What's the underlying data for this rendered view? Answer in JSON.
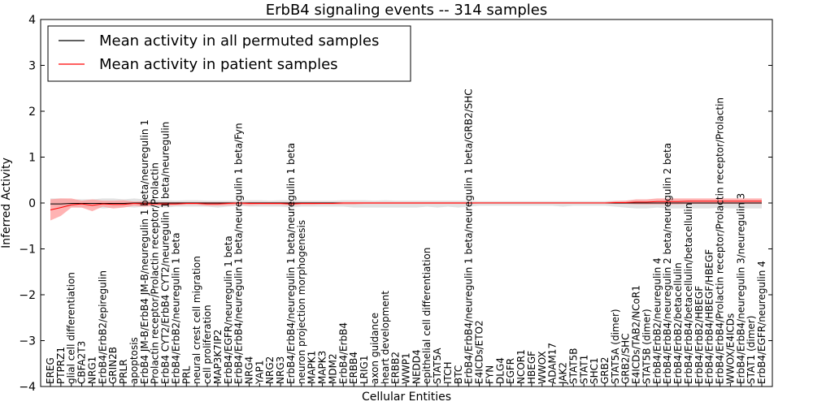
{
  "chart_data": {
    "type": "line",
    "title": "ErbB4 signaling events -- 314 samples",
    "xlabel": "Cellular Entities",
    "ylabel": "Inferred Activity",
    "ylim": [
      -4,
      4
    ],
    "yticks": [
      4,
      3,
      2,
      1,
      0,
      -1,
      -2,
      -3,
      -4
    ],
    "grid": false,
    "legend_position": "top-left",
    "categories": [
      "EREG",
      "PTPRZ1",
      "glial cell differentiation",
      "CBFA2T3",
      "NRG1",
      "ErbB4/ErbB2/epiregulin",
      "GRIN2B",
      "PRLR",
      "apoptosis",
      "ErbB4 JM-B/ErbB4 JM-B/neuregulin 1 beta/neuregulin 1",
      "Prolactin receptor/Prolactin receptor/Prolactin",
      "ErbB4 CYT2/ErbB4 CYT2/neuregulin 1 beta/neuregulin",
      "ErbB4/ErbB2/neuregulin 1 beta",
      "PRL",
      "neural crest cell migration",
      "cell proliferation",
      "MAP3K7IP2",
      "ErbB4/EGFR/neuregulin 1 beta",
      "ErbB4/ErbB4/neuregulin 1 beta/neuregulin 1 beta/Fyn",
      "NRG4",
      "YAP1",
      "NRG2",
      "NRG3",
      "ErbB4/ErbB4/neuregulin 1 beta/neuregulin 1 beta",
      "neuron projection morphogenesis",
      "MAPK1",
      "MAPK3",
      "MDM2",
      "ErbB4/ErbB4",
      "ERBB4",
      "LRIG1",
      "axon guidance",
      "heart development",
      "ERBB2",
      "WWP1",
      "NEDD4",
      "epithelial cell differentiation",
      "STAT5A",
      "ITCH",
      "BTC",
      "ErbB4/ErbB4/neuregulin 1 beta/neuregulin 1 beta/GRB2/SHC",
      "E4ICDs/ETO2",
      "FYN",
      "DLG4",
      "EGFR",
      "NCOR1",
      "HBEGF",
      "WWOX",
      "ADAM17",
      "JAK2",
      "STAT5B",
      "STAT1",
      "SHC1",
      "GRB2",
      "STAT5A (dimer)",
      "GRB2/SHC",
      "E4ICDs/TAB2/NCoR1",
      "STAT5B (dimer)",
      "ErbB4/ErbB2/neuregulin 4",
      "ErbB4/ErbB4/neuregulin 2 beta/neuregulin 2 beta",
      "ErbB4/ErbB2/betacellulin",
      "ErbB4/ErbB4/betacellulin/betacellulin",
      "ErbB4/ErbB2/HBEGF",
      "ErbB4/ErbB4/HBEGF/HBEGF",
      "ErbB4/ErbB4/Prolactin receptor/Prolactin receptor/Prolactin",
      "WWOX/E4ICDs",
      "ErbB4/ErbB4/neuregulin 3/neuregulin 3",
      "STAT1 (dimer)",
      "ErbB4/EGFR/neuregulin 4"
    ],
    "series": [
      {
        "name": "Mean activity in all permuted samples",
        "color": "#000000",
        "values": [
          -0.02,
          -0.02,
          -0.01,
          -0.01,
          -0.01,
          -0.01,
          -0.01,
          -0.01,
          0,
          0,
          0,
          0,
          0,
          0,
          0,
          0,
          0,
          0,
          0,
          0,
          0,
          0,
          0,
          0,
          0,
          0,
          0,
          0,
          0,
          0,
          0,
          0,
          0,
          0,
          0,
          0,
          0,
          0,
          0,
          0,
          0,
          0,
          0,
          0,
          0,
          0,
          0,
          0,
          0,
          0,
          0,
          0,
          0,
          0,
          0,
          0,
          0,
          0,
          0,
          0,
          0,
          0,
          0,
          0,
          0,
          0,
          0,
          0,
          0
        ],
        "band_low": [
          -0.05,
          -0.1,
          -0.08,
          -0.1,
          -0.08,
          -0.12,
          -0.1,
          -0.08,
          -0.1,
          -0.08,
          -0.08,
          -0.1,
          -0.08,
          -0.08,
          -0.08,
          -0.08,
          -0.1,
          -0.08,
          -0.06,
          -0.08,
          -0.08,
          -0.08,
          -0.08,
          -0.1,
          -0.08,
          -0.08,
          -0.08,
          -0.08,
          -0.08,
          -0.1,
          -0.1,
          -0.1,
          -0.1,
          -0.1,
          -0.1,
          -0.1,
          -0.08,
          -0.1,
          -0.08,
          -0.1,
          -0.08,
          -0.06,
          -0.06,
          -0.06,
          -0.06,
          -0.06,
          -0.06,
          -0.06,
          -0.06,
          -0.08,
          -0.06,
          -0.06,
          -0.06,
          -0.06,
          -0.08,
          -0.1,
          -0.12,
          -0.12,
          -0.1,
          -0.12,
          -0.12,
          -0.12,
          -0.12,
          -0.12,
          -0.1,
          -0.12,
          -0.12,
          -0.12,
          -0.12
        ],
        "band_high": [
          0.1,
          0.1,
          0.08,
          0.08,
          0.08,
          0.1,
          0.1,
          0.08,
          0.1,
          0.08,
          0.06,
          0.06,
          0.05,
          0.06,
          0.06,
          0.05,
          0.05,
          0.05,
          0.05,
          0.06,
          0.06,
          0.05,
          0.06,
          0.06,
          0.05,
          0.05,
          0.05,
          0.05,
          0.06,
          0.06,
          0.06,
          0.05,
          0.06,
          0.05,
          0.05,
          0.05,
          0.05,
          0.05,
          0.05,
          0.05,
          0.05,
          0.04,
          0.04,
          0.04,
          0.04,
          0.04,
          0.04,
          0.04,
          0.04,
          0.04,
          0.04,
          0.04,
          0.04,
          0.04,
          0.05,
          0.05,
          0.06,
          0.06,
          0.06,
          0.06,
          0.06,
          0.06,
          0.06,
          0.06,
          0.06,
          0.06,
          0.06,
          0.06,
          0.06
        ]
      },
      {
        "name": "Mean activity in patient samples",
        "color": "#ff0000",
        "values": [
          -0.15,
          -0.1,
          -0.04,
          -0.02,
          -0.05,
          -0.02,
          -0.03,
          -0.03,
          -0.01,
          -0.02,
          -0.02,
          -0.02,
          -0.02,
          -0.01,
          -0.01,
          -0.02,
          -0.02,
          -0.01,
          0,
          -0.01,
          -0.01,
          -0.01,
          -0.01,
          -0.02,
          -0.01,
          -0.01,
          -0.01,
          -0.01,
          0,
          0,
          0,
          0,
          0,
          0,
          0,
          0,
          0,
          0,
          0,
          0,
          0,
          0,
          0,
          0,
          0,
          0,
          0,
          0,
          0,
          0,
          0,
          0,
          0,
          0,
          0.01,
          0.01,
          0.02,
          0.02,
          0.03,
          0.03,
          0.03,
          0.04,
          0.04,
          0.04,
          0.04,
          0.04,
          0.04,
          0.04,
          0.04
        ],
        "band_low": [
          -0.38,
          -0.28,
          -0.1,
          -0.1,
          -0.18,
          -0.08,
          -0.12,
          -0.1,
          -0.06,
          -0.08,
          -0.05,
          -0.06,
          -0.05,
          -0.04,
          -0.04,
          -0.06,
          -0.06,
          -0.05,
          -0.04,
          -0.05,
          -0.04,
          -0.04,
          -0.04,
          -0.05,
          -0.04,
          -0.04,
          -0.03,
          -0.03,
          -0.03,
          -0.03,
          -0.02,
          -0.02,
          -0.02,
          -0.02,
          -0.02,
          -0.02,
          -0.02,
          -0.02,
          -0.02,
          -0.02,
          -0.02,
          -0.01,
          -0.01,
          -0.01,
          -0.01,
          -0.01,
          -0.01,
          -0.01,
          -0.01,
          -0.01,
          -0.01,
          -0.01,
          -0.01,
          -0.01,
          -0.02,
          -0.02,
          -0.03,
          -0.03,
          -0.03,
          -0.03,
          -0.03,
          -0.02,
          -0.02,
          -0.02,
          -0.02,
          -0.02,
          -0.02,
          -0.02,
          -0.02
        ],
        "band_high": [
          0.08,
          0.1,
          0.1,
          0.05,
          0.08,
          0.05,
          0.05,
          0.06,
          0.03,
          0.04,
          0.02,
          0.02,
          0.02,
          0.02,
          0.02,
          0.02,
          0.02,
          0.02,
          0.02,
          0.02,
          0.02,
          0.02,
          0.02,
          0.02,
          0.02,
          0.02,
          0.02,
          0.02,
          0.02,
          0.02,
          0.02,
          0.02,
          0.02,
          0.02,
          0.02,
          0.02,
          0.02,
          0.02,
          0.02,
          0.02,
          0.02,
          0.02,
          0.02,
          0.02,
          0.02,
          0.02,
          0.02,
          0.02,
          0.02,
          0.02,
          0.02,
          0.02,
          0.02,
          0.02,
          0.04,
          0.05,
          0.08,
          0.08,
          0.1,
          0.1,
          0.1,
          0.1,
          0.1,
          0.1,
          0.1,
          0.1,
          0.1,
          0.1,
          0.1
        ]
      }
    ],
    "band_colors": {
      "permuted": "#d8d8d8",
      "patient": "#ff9a9a"
    }
  }
}
